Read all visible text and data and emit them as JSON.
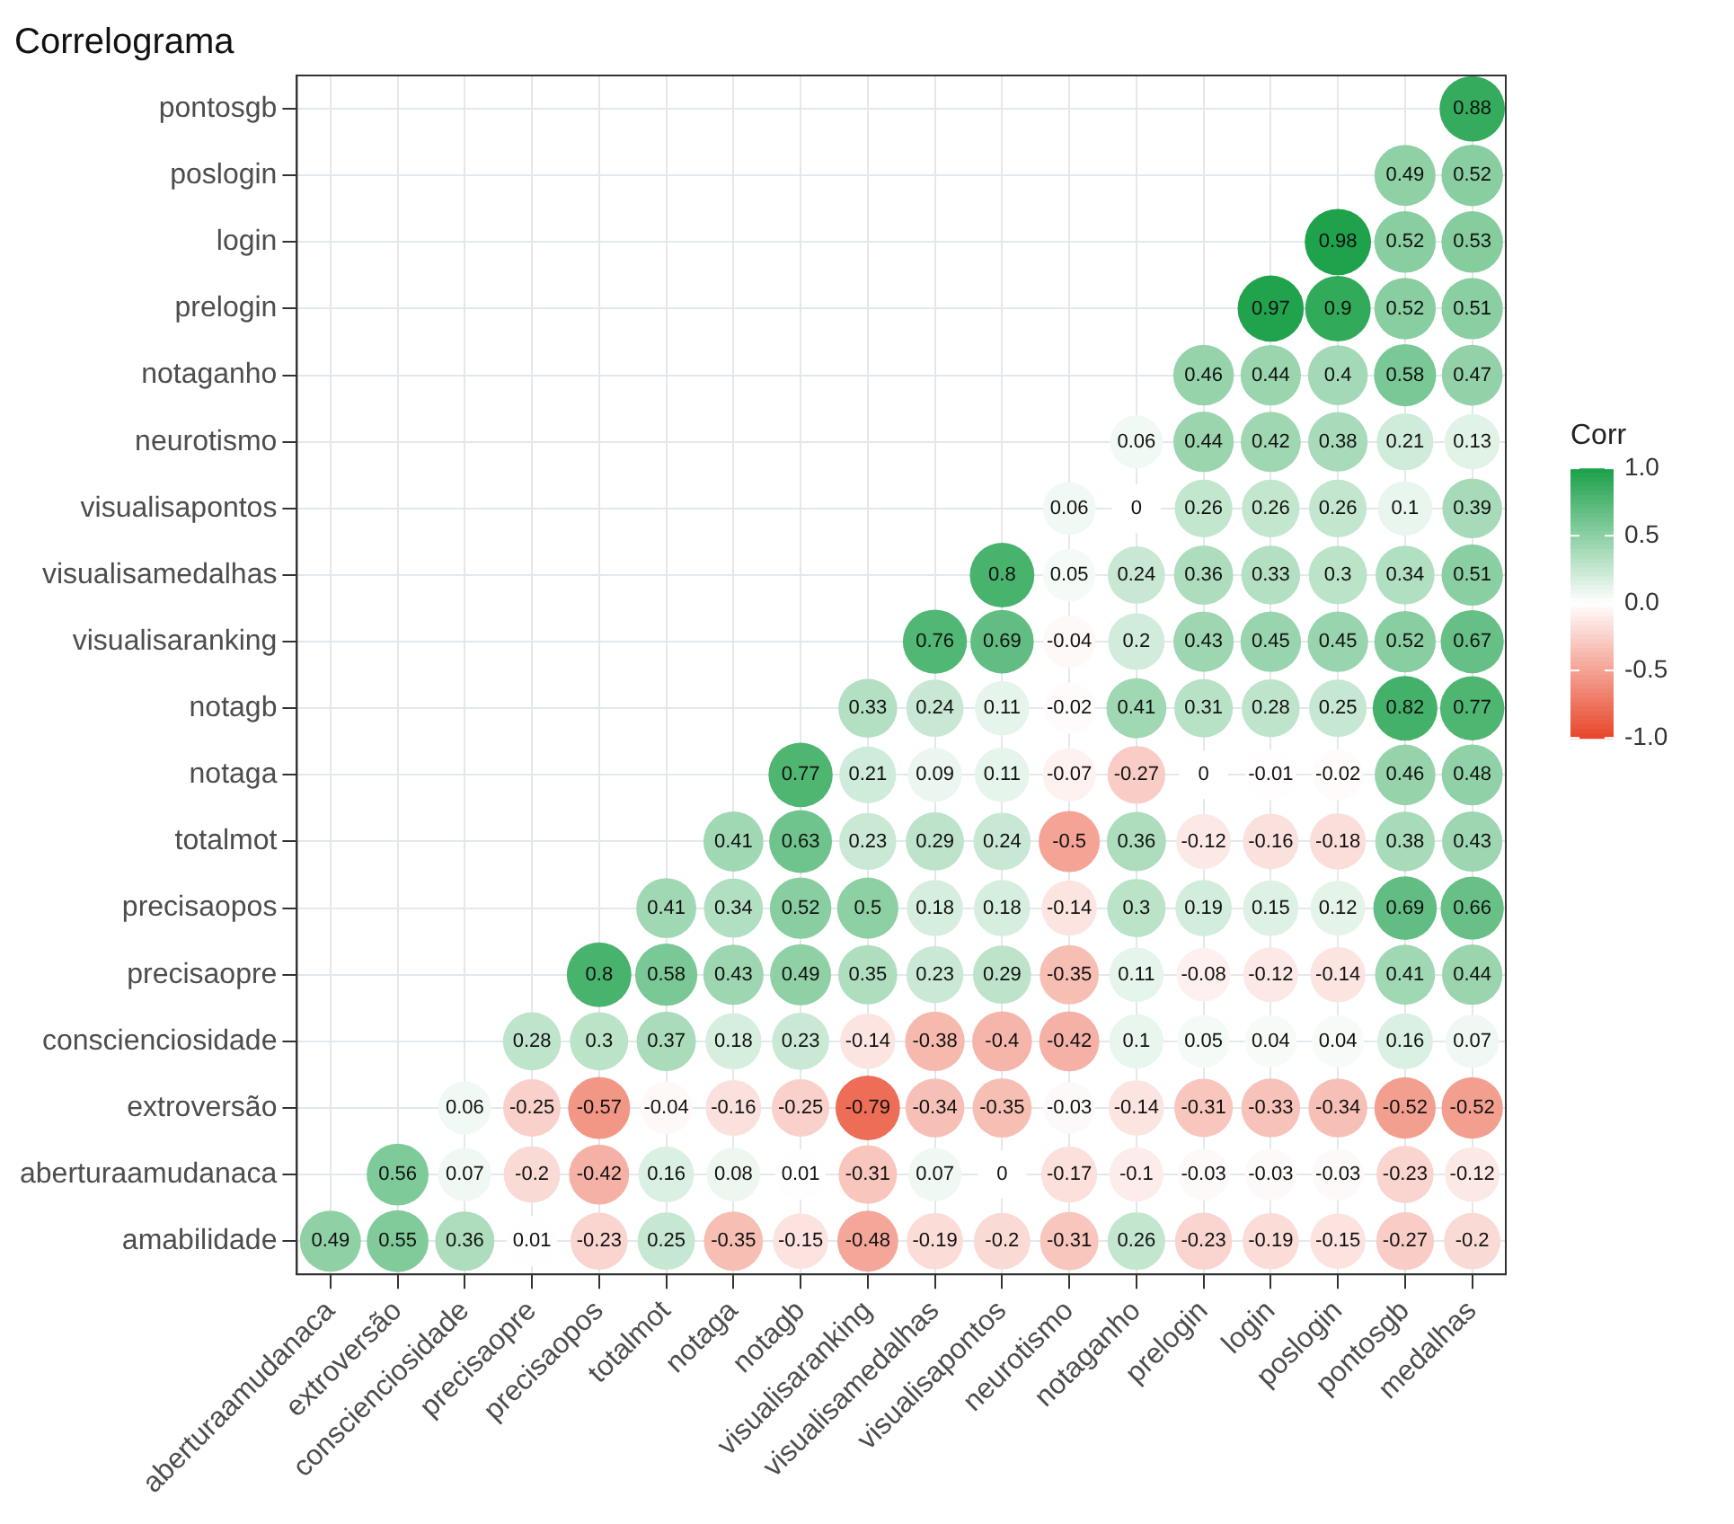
{
  "chart_data": {
    "type": "heatmap",
    "title": "Correlograma",
    "clabel": "Corr",
    "categories": [
      "aberturaamudanaca",
      "extroversão",
      "conscienciosidade",
      "precisaopre",
      "precisaopos",
      "totalmot",
      "notaga",
      "notagb",
      "visualisaranking",
      "visualisamedalhas",
      "visualisapontos",
      "neurotismo",
      "notaganho",
      "prelogin",
      "login",
      "poslogin",
      "pontosgb",
      "medalhas"
    ],
    "y_categories": [
      "pontosgb",
      "poslogin",
      "login",
      "prelogin",
      "notaganho",
      "neurotismo",
      "visualisapontos",
      "visualisamedalhas",
      "visualisaranking",
      "notagb",
      "notaga",
      "totalmot",
      "precisaopos",
      "precisaopre",
      "conscienciosidade",
      "extroversão",
      "aberturaamudanaca",
      "amabilidade"
    ],
    "cells": [
      [
        null,
        null,
        null,
        null,
        null,
        null,
        null,
        null,
        null,
        null,
        null,
        null,
        null,
        null,
        null,
        null,
        null,
        0.88
      ],
      [
        null,
        null,
        null,
        null,
        null,
        null,
        null,
        null,
        null,
        null,
        null,
        null,
        null,
        null,
        null,
        null,
        0.49,
        0.52
      ],
      [
        null,
        null,
        null,
        null,
        null,
        null,
        null,
        null,
        null,
        null,
        null,
        null,
        null,
        null,
        null,
        0.98,
        0.52,
        0.53
      ],
      [
        null,
        null,
        null,
        null,
        null,
        null,
        null,
        null,
        null,
        null,
        null,
        null,
        null,
        null,
        0.97,
        0.9,
        0.52,
        0.51
      ],
      [
        null,
        null,
        null,
        null,
        null,
        null,
        null,
        null,
        null,
        null,
        null,
        null,
        null,
        0.46,
        0.44,
        0.4,
        0.58,
        0.47
      ],
      [
        null,
        null,
        null,
        null,
        null,
        null,
        null,
        null,
        null,
        null,
        null,
        null,
        0.06,
        0.44,
        0.42,
        0.38,
        0.21,
        0.13
      ],
      [
        null,
        null,
        null,
        null,
        null,
        null,
        null,
        null,
        null,
        null,
        null,
        0.06,
        0,
        0.26,
        0.26,
        0.26,
        0.1,
        0.39
      ],
      [
        null,
        null,
        null,
        null,
        null,
        null,
        null,
        null,
        null,
        null,
        0.8,
        0.05,
        0.24,
        0.36,
        0.33,
        0.3,
        0.34,
        0.51
      ],
      [
        null,
        null,
        null,
        null,
        null,
        null,
        null,
        null,
        null,
        0.76,
        0.69,
        -0.04,
        0.2,
        0.43,
        0.45,
        0.45,
        0.52,
        0.67
      ],
      [
        null,
        null,
        null,
        null,
        null,
        null,
        null,
        null,
        0.33,
        0.24,
        0.11,
        -0.02,
        0.41,
        0.31,
        0.28,
        0.25,
        0.82,
        0.77
      ],
      [
        null,
        null,
        null,
        null,
        null,
        null,
        null,
        0.77,
        0.21,
        0.09,
        0.11,
        -0.07,
        -0.27,
        0,
        -0.01,
        -0.02,
        0.46,
        0.48
      ],
      [
        null,
        null,
        null,
        null,
        null,
        null,
        0.41,
        0.63,
        0.23,
        0.29,
        0.24,
        -0.5,
        0.36,
        -0.12,
        -0.16,
        -0.18,
        0.38,
        0.43
      ],
      [
        null,
        null,
        null,
        null,
        null,
        0.41,
        0.34,
        0.52,
        0.5,
        0.18,
        0.18,
        -0.14,
        0.3,
        0.19,
        0.15,
        0.12,
        0.69,
        0.66
      ],
      [
        null,
        null,
        null,
        null,
        0.8,
        0.58,
        0.43,
        0.49,
        0.35,
        0.23,
        0.29,
        -0.35,
        0.11,
        -0.08,
        -0.12,
        -0.14,
        0.41,
        0.44
      ],
      [
        null,
        null,
        null,
        0.28,
        0.3,
        0.37,
        0.18,
        0.23,
        -0.14,
        -0.38,
        -0.4,
        -0.42,
        0.1,
        0.05,
        0.04,
        0.04,
        0.16,
        0.07
      ],
      [
        null,
        null,
        0.06,
        -0.25,
        -0.57,
        -0.04,
        -0.16,
        -0.25,
        -0.79,
        -0.34,
        -0.35,
        -0.03,
        -0.14,
        -0.31,
        -0.33,
        -0.34,
        -0.52,
        -0.52
      ],
      [
        null,
        0.56,
        0.07,
        -0.2,
        -0.42,
        0.16,
        0.08,
        0.01,
        -0.31,
        0.07,
        0,
        -0.17,
        -0.1,
        -0.03,
        -0.03,
        -0.03,
        -0.23,
        -0.12
      ],
      [
        0.49,
        0.55,
        0.36,
        0.01,
        -0.23,
        0.25,
        -0.35,
        -0.15,
        -0.48,
        -0.19,
        -0.2,
        -0.31,
        0.26,
        -0.23,
        -0.19,
        -0.15,
        -0.27,
        -0.2
      ]
    ],
    "clim": [
      -1,
      1
    ],
    "cticks": [
      {
        "value": -1,
        "label": "-1.0"
      },
      {
        "value": -0.5,
        "label": "-0.5"
      },
      {
        "value": 0,
        "label": "0.0"
      },
      {
        "value": 0.5,
        "label": "0.5"
      },
      {
        "value": 1,
        "label": "1.0"
      }
    ],
    "data_labels": true,
    "grid": true
  }
}
